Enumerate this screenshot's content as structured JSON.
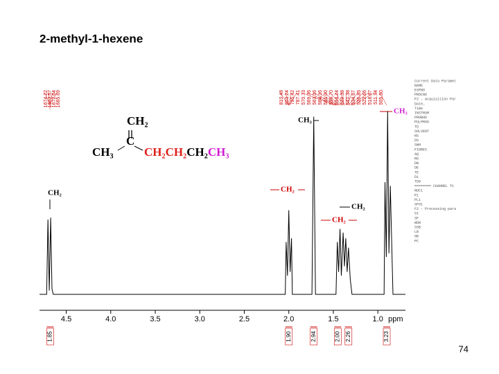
{
  "chart_data": {
    "type": "line",
    "title": "2-methyl-1-hexene",
    "xlabel": "ppm",
    "color": "#000000",
    "x": [
      4.8,
      4.72,
      4.705,
      4.69,
      4.675,
      4.66,
      4.645,
      4.6,
      2.1,
      2.04,
      2.03,
      2.015,
      2.0,
      1.985,
      1.97,
      1.96,
      1.78,
      1.74,
      1.72,
      1.7,
      1.55,
      1.47,
      1.455,
      1.44,
      1.425,
      1.41,
      1.39,
      1.375,
      1.36,
      1.345,
      1.33,
      1.31,
      1.29,
      1.25,
      0.96,
      0.93,
      0.92,
      0.905,
      0.89,
      0.875,
      0.86,
      0.83,
      0.69
    ],
    "values": [
      0,
      0,
      40,
      2,
      41,
      3,
      0,
      0,
      0,
      0,
      28,
      10,
      45,
      12,
      30,
      0,
      0,
      0,
      95,
      0,
      0,
      0,
      28,
      12,
      35,
      10,
      33,
      15,
      30,
      12,
      25,
      8,
      0,
      0,
      0,
      0,
      60,
      20,
      98,
      22,
      58,
      0,
      0
    ],
    "xlim": [
      4.8,
      0.69
    ],
    "ylim": [
      0,
      100
    ],
    "xticks": [
      4.5,
      {
        "value": 4,
        "label": "4.0"
      },
      3.5,
      {
        "value": 3,
        "label": "3.0"
      },
      2.5,
      {
        "value": 2,
        "label": "2.0"
      },
      1.5,
      {
        "value": 1,
        "label": "1.0"
      }
    ],
    "integrals": {
      "x": [
        4.68,
        2.0,
        1.72,
        1.45,
        1.33,
        0.9
      ],
      "values": [
        1.85,
        1.9,
        2.94,
        2,
        2.26,
        3.23
      ],
      "value_labels": [
        "1.85",
        "1.90",
        "2.94",
        "2.00",
        "2.26",
        "3.23"
      ]
    }
  },
  "peak_list_left": [
    "1674.22",
    "1673.57",
    "1672.64",
    "1665.69"
  ],
  "peak_list_right": [
    "810.48",
    "803.24",
    "795.42",
    "787.41",
    "570.73",
    "569.76",
    "563.16",
    "564.16",
    "561.00",
    "556.70",
    "554.24",
    "549.38",
    "541.38",
    "534.67",
    "526.85",
    "522.66",
    "518.87",
    "511.94",
    "505.50"
  ],
  "peak_labels": [
    "CH₂",
    "CH₂",
    "CH₃",
    "CH₂",
    "CH₂",
    "CH₃"
  ],
  "structure": {
    "top": "CH₂",
    "center": "C",
    "left": "CH₃",
    "chain": [
      "CH₂",
      "CH₂",
      "CH₂",
      "CH₃"
    ]
  },
  "parameters": [
    "Current Data Paramet",
    "NAME",
    "EXPNO",
    "PROCNO",
    "F2 - Acquisition Par",
    "Date_",
    "Time",
    "INSTRUM",
    "PROBHD",
    "PULPROG",
    "TD",
    "SOLVENT",
    "NS",
    "DS",
    "SWH",
    "FIDRES",
    "AQ",
    "RG",
    "DW",
    "DE",
    "TE",
    "D1",
    "TD0",
    "======== CHANNEL f1",
    "NUC1",
    "P1",
    "PL1",
    "SFO1",
    "F2 - Processing para",
    "SI",
    "SF",
    "WDW",
    "SSB",
    "LB",
    "GB",
    "PC"
  ],
  "page_number": "74"
}
